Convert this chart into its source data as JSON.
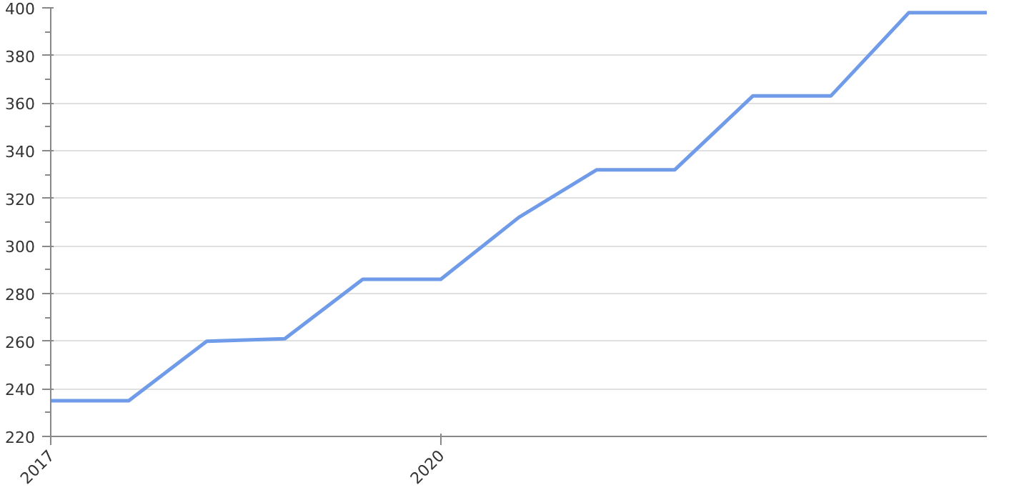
{
  "chart_data": {
    "type": "line",
    "categories": [
      "2017",
      null,
      null,
      null,
      null,
      "2020",
      null,
      null,
      null,
      null,
      null,
      null,
      null
    ],
    "series": [
      {
        "color": "#6f9be8",
        "values": [
          235,
          235,
          260,
          261,
          286,
          286,
          312,
          332,
          332,
          363,
          363,
          398,
          398
        ]
      }
    ],
    "ylim": [
      220,
      400
    ],
    "yticks": [
      220,
      240,
      260,
      280,
      300,
      320,
      340,
      360,
      380,
      400
    ],
    "grid": "y",
    "marker": "none",
    "line_style": "solid"
  }
}
